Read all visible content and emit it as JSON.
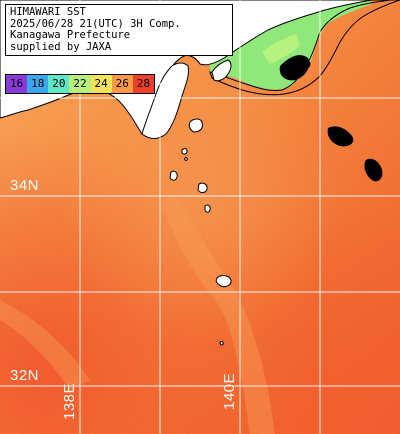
{
  "title_lines": [
    "HIMAWARI SST",
    "2025/06/28 21(UTC) 3H Comp.",
    "Kanagawa Prefecture",
    "supplied by JAXA"
  ],
  "legend": {
    "labels": [
      "16",
      "18",
      "20",
      "22",
      "24",
      "26",
      "28"
    ],
    "colors": [
      "#8a3ad6",
      "#3aa8ee",
      "#5ee8c8",
      "#b6f07a",
      "#f4e25a",
      "#f99a48",
      "#f23f2c"
    ]
  },
  "colors": {
    "ocean_base": "#f3863c",
    "ocean_warm": "#ef5a26",
    "ocean_light": "#f7a25a",
    "land": "#ffffff",
    "cloud": "#000000",
    "coastal_cool": "#86e878",
    "grid": "#ffffff"
  },
  "grid_labels": {
    "lat_34": "34N",
    "lat_32": "32N",
    "lon_138": "138E",
    "lon_140": "140E"
  }
}
